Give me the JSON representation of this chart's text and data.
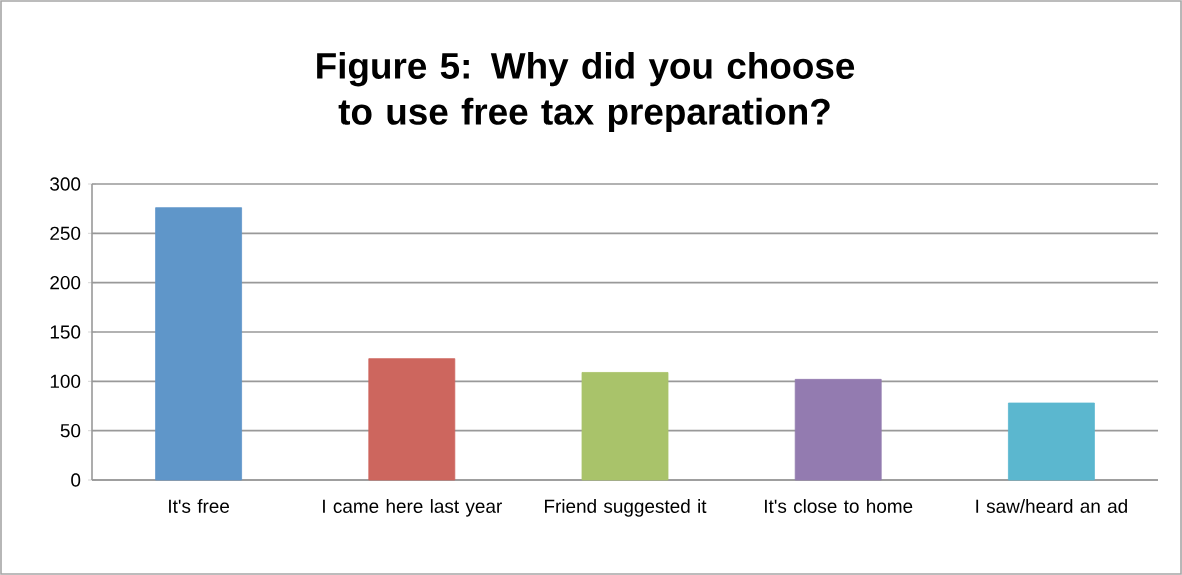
{
  "chart_data": {
    "type": "bar",
    "title": "Figure 5: Why did you choose to use free tax preparation?",
    "categories": [
      "It's free",
      "I came here last year",
      "Friend suggested it",
      "It's close to home",
      "I saw/heard an ad"
    ],
    "values": [
      276,
      123,
      109,
      102,
      78
    ],
    "colors": [
      "#5f96c9",
      "#cd665e",
      "#a9c36a",
      "#937bb0",
      "#5bb7cf"
    ],
    "ylim": [
      0,
      300
    ],
    "yticks": [
      0,
      50,
      100,
      150,
      200,
      250,
      300
    ],
    "grid": "y"
  }
}
